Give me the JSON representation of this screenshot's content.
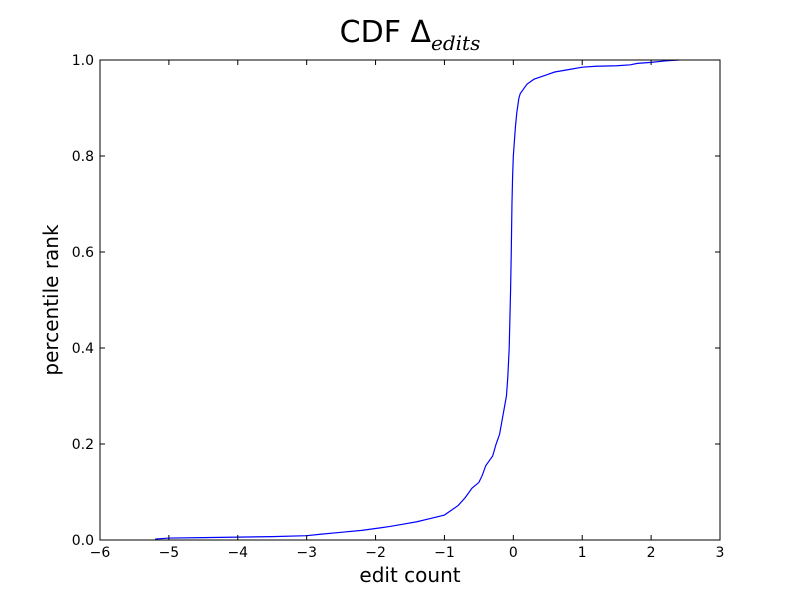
{
  "chart_data": {
    "type": "line",
    "title": {
      "main": "CDF Δ",
      "subscript": "edits"
    },
    "xlabel": "edit count",
    "ylabel": "percentile rank",
    "xlim": [
      -6,
      3
    ],
    "ylim": [
      0,
      1
    ],
    "xticks": [
      -6,
      -5,
      -4,
      -3,
      -2,
      -1,
      0,
      1,
      2,
      3
    ],
    "xtick_labels": [
      "−6",
      "−5",
      "−4",
      "−3",
      "−2",
      "−1",
      "0",
      "1",
      "2",
      "3"
    ],
    "yticks": [
      0.0,
      0.2,
      0.4,
      0.6,
      0.8,
      1.0
    ],
    "ytick_labels": [
      "0.0",
      "0.2",
      "0.4",
      "0.6",
      "0.8",
      "1.0"
    ],
    "grid": false,
    "series": [
      {
        "color": "#0000ff",
        "x": [
          -5.2,
          -5.0,
          -4.5,
          -4.0,
          -3.5,
          -3.0,
          -2.8,
          -2.5,
          -2.2,
          -2.0,
          -1.8,
          -1.6,
          -1.4,
          -1.2,
          -1.0,
          -0.9,
          -0.8,
          -0.7,
          -0.6,
          -0.5,
          -0.45,
          -0.4,
          -0.35,
          -0.3,
          -0.25,
          -0.2,
          -0.15,
          -0.1,
          -0.08,
          -0.06,
          -0.05,
          -0.04,
          -0.03,
          -0.02,
          -0.01,
          0.0,
          0.01,
          0.02,
          0.03,
          0.05,
          0.08,
          0.1,
          0.15,
          0.2,
          0.25,
          0.3,
          0.4,
          0.5,
          0.6,
          0.8,
          1.0,
          1.2,
          1.5,
          1.7,
          1.8,
          2.0,
          2.2,
          2.4
        ],
        "y": [
          0.002,
          0.004,
          0.005,
          0.006,
          0.007,
          0.009,
          0.012,
          0.016,
          0.02,
          0.024,
          0.028,
          0.033,
          0.038,
          0.045,
          0.052,
          0.062,
          0.072,
          0.088,
          0.108,
          0.12,
          0.135,
          0.155,
          0.165,
          0.175,
          0.2,
          0.22,
          0.26,
          0.3,
          0.34,
          0.4,
          0.46,
          0.52,
          0.6,
          0.7,
          0.76,
          0.8,
          0.82,
          0.84,
          0.86,
          0.89,
          0.92,
          0.93,
          0.94,
          0.95,
          0.955,
          0.96,
          0.965,
          0.97,
          0.975,
          0.98,
          0.985,
          0.987,
          0.988,
          0.99,
          0.993,
          0.995,
          0.998,
          1.0
        ]
      }
    ]
  }
}
